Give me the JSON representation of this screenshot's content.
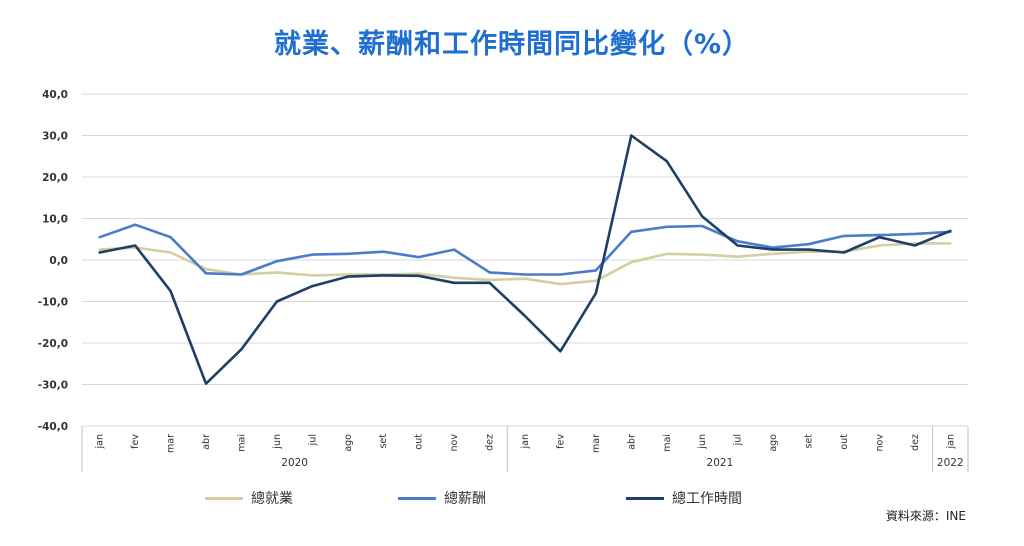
{
  "chart_data": {
    "type": "line",
    "title": "就業、薪酬和工作時間同比變化（%）",
    "ylim": [
      -40,
      40
    ],
    "y_ticks": [
      "40,0",
      "30,0",
      "20,0",
      "10,0",
      "0,0",
      "-10,0",
      "-20,0",
      "-30,0",
      "-40,0"
    ],
    "y_tick_values": [
      40,
      30,
      20,
      10,
      0,
      -10,
      -20,
      -30,
      -40
    ],
    "grid": true,
    "legend_position": "bottom",
    "categories": [
      "jan",
      "fev",
      "mar",
      "abr",
      "mai",
      "jun",
      "jul",
      "ago",
      "set",
      "out",
      "nov",
      "dez",
      "jan",
      "fev",
      "mar",
      "abr",
      "mai",
      "jun",
      "jul",
      "ago",
      "set",
      "out",
      "nov",
      "dez",
      "jan"
    ],
    "year_groups": [
      {
        "label": "2020",
        "count": 12
      },
      {
        "label": "2021",
        "count": 12
      },
      {
        "label": "2022",
        "count": 1
      }
    ],
    "series": [
      {
        "name": "總就業",
        "color": "#d4cea0",
        "values": [
          2.5,
          3.0,
          1.8,
          -2.2,
          -3.5,
          -3.0,
          -3.7,
          -3.5,
          -3.5,
          -3.3,
          -4.3,
          -4.8,
          -4.5,
          -5.8,
          -5.0,
          -0.5,
          1.5,
          1.3,
          0.8,
          1.5,
          2.0,
          2.0,
          3.5,
          4.0,
          4.0
        ]
      },
      {
        "name": "總薪酬",
        "color": "#4a7cc9",
        "values": [
          5.5,
          8.5,
          5.5,
          -3.2,
          -3.5,
          -0.3,
          1.3,
          1.5,
          2.0,
          0.7,
          2.5,
          -3.0,
          -3.5,
          -3.5,
          -2.5,
          6.8,
          8.0,
          8.2,
          4.5,
          3.0,
          3.8,
          5.8,
          6.0,
          6.3,
          6.8
        ]
      },
      {
        "name": "總工作時間",
        "color": "#1e3f66",
        "values": [
          1.8,
          3.5,
          -7.5,
          -29.8,
          -21.5,
          -10.0,
          -6.3,
          -4.0,
          -3.7,
          -3.8,
          -5.5,
          -5.5,
          -13.5,
          -22.0,
          -8.0,
          30.0,
          23.8,
          10.5,
          3.5,
          2.5,
          2.5,
          1.8,
          5.5,
          3.5,
          7.0
        ]
      }
    ]
  },
  "source_note": "資料來源：INE"
}
